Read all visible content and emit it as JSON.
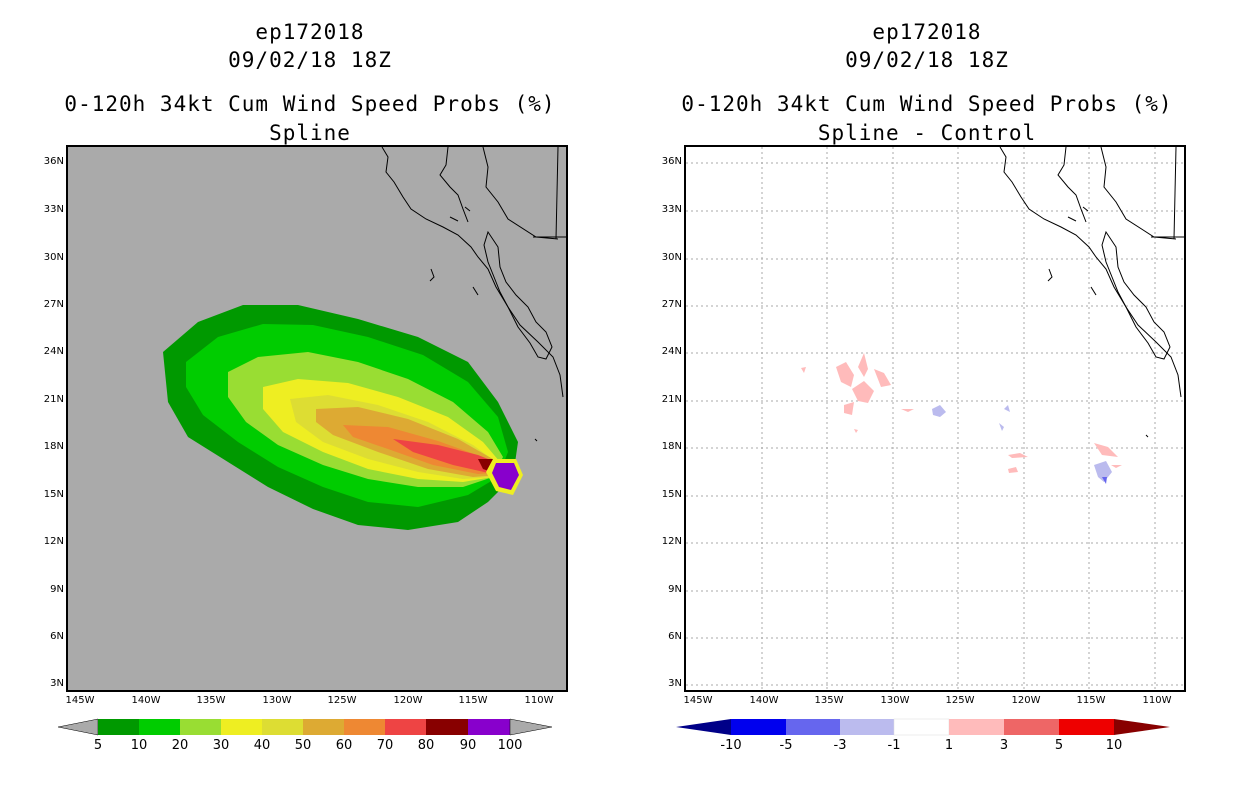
{
  "left": {
    "title1": "ep172018",
    "title2": "09/02/18 18Z",
    "title3": "0-120h 34kt Cum Wind Speed Probs (%)",
    "title4": "Spline",
    "lat_labels": [
      "36N",
      "33N",
      "30N",
      "27N",
      "24N",
      "21N",
      "18N",
      "15N",
      "12N",
      "9N",
      "6N",
      "3N"
    ],
    "lon_labels": [
      "145W",
      "140W",
      "135W",
      "130W",
      "125W",
      "120W",
      "115W",
      "110W"
    ],
    "colorbar": {
      "labels": [
        "5",
        "10",
        "20",
        "30",
        "40",
        "50",
        "60",
        "70",
        "80",
        "90",
        "100"
      ],
      "colors": [
        "#009900",
        "#00cc00",
        "#99dd33",
        "#eeee22",
        "#dddd33",
        "#ddaa33",
        "#ee8833",
        "#ee4444",
        "#880000",
        "#8800cc"
      ],
      "under_color": "#aaaaaa",
      "over_color": "#aaaaaa"
    },
    "background_color": "#aaaaaa"
  },
  "right": {
    "title1": "ep172018",
    "title2": "09/02/18 18Z",
    "title3": "0-120h 34kt Cum Wind Speed Probs (%)",
    "title4": "Spline - Control",
    "lat_labels": [
      "36N",
      "33N",
      "30N",
      "27N",
      "24N",
      "21N",
      "18N",
      "15N",
      "12N",
      "9N",
      "6N",
      "3N"
    ],
    "lon_labels": [
      "145W",
      "140W",
      "135W",
      "130W",
      "125W",
      "120W",
      "115W",
      "110W"
    ],
    "colorbar": {
      "labels": [
        "-10",
        "-5",
        "-3",
        "-1",
        "1",
        "3",
        "5",
        "10"
      ],
      "colors": [
        "#0000ee",
        "#6666ee",
        "#bbbbee",
        "#ffffff",
        "#ffbbbb",
        "#ee6666",
        "#ee0000"
      ],
      "under_color": "#000088",
      "over_color": "#880000"
    },
    "background_color": "#ffffff"
  }
}
